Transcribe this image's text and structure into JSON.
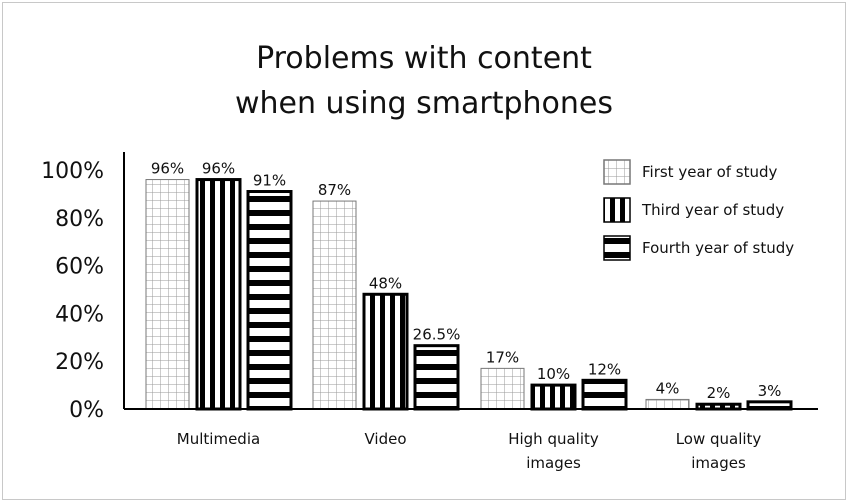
{
  "chart_data": {
    "type": "bar",
    "title_lines": [
      "Problems with content",
      "when using smartphones"
    ],
    "categories": [
      {
        "lines": [
          "Multimedia"
        ]
      },
      {
        "lines": [
          "Video"
        ]
      },
      {
        "lines": [
          "High quality",
          "images"
        ]
      },
      {
        "lines": [
          "Low quality",
          "images"
        ]
      }
    ],
    "series": [
      {
        "name": "First year of study",
        "pattern": "grid",
        "values": [
          96,
          87,
          17,
          4
        ],
        "labels": [
          "96%",
          "87%",
          "17%",
          "4%"
        ]
      },
      {
        "name": "Third year of study",
        "pattern": "vertical-stripes",
        "values": [
          96,
          48,
          10,
          2
        ],
        "labels": [
          "96%",
          "48%",
          "10%",
          "2%"
        ]
      },
      {
        "name": "Fourth year of study",
        "pattern": "horizontal-stripes",
        "values": [
          91,
          26.5,
          12,
          3
        ],
        "labels": [
          "91%",
          "26.5%",
          "12%",
          "3%"
        ]
      }
    ],
    "yticks": [
      "0%",
      "20%",
      "40%",
      "60%",
      "80%",
      "100%"
    ],
    "ylim": [
      0,
      100
    ],
    "legend_position": "top-right",
    "grid": false
  }
}
